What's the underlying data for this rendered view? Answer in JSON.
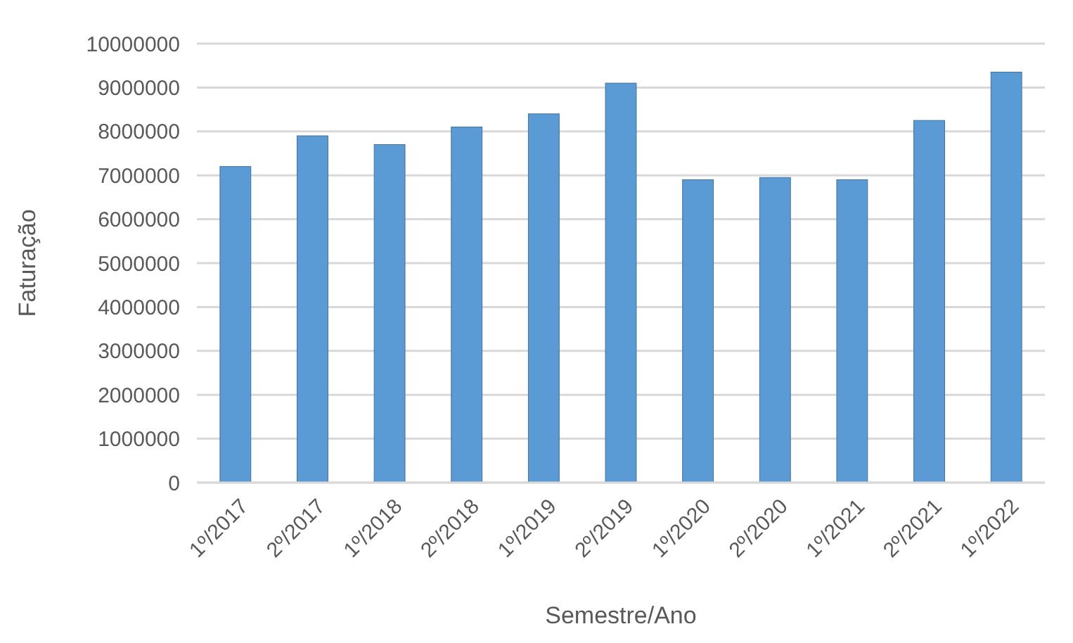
{
  "chart_data": {
    "type": "bar",
    "xlabel": "Semestre/Ano",
    "ylabel": "Faturação",
    "categories": [
      "1º/2017",
      "2º/2017",
      "1º/2018",
      "2º/2018",
      "1º/2019",
      "2º/2019",
      "1º/2020",
      "2º/2020",
      "1º/2021",
      "2º/2021",
      "1º/2022"
    ],
    "values": [
      7200000,
      7900000,
      7700000,
      8100000,
      8400000,
      9100000,
      6900000,
      6950000,
      6900000,
      8250000,
      9350000
    ],
    "color": "#5b9bd5",
    "ylim": [
      0,
      10000000
    ],
    "yticks": [
      0,
      1000000,
      2000000,
      3000000,
      4000000,
      5000000,
      6000000,
      7000000,
      8000000,
      9000000,
      10000000
    ],
    "grid": "y"
  }
}
